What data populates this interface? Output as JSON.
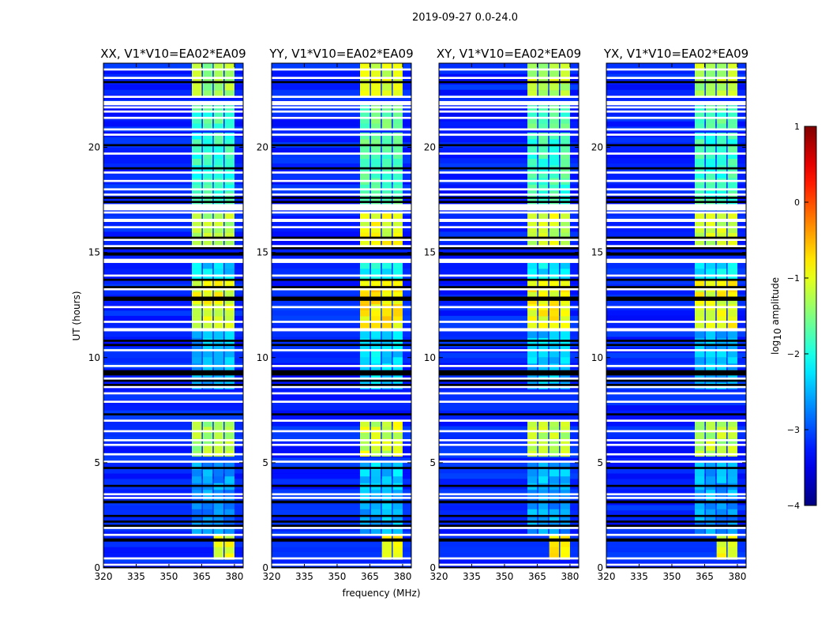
{
  "chart_data": {
    "type": "heatmap",
    "title": "2019-09-27 0.0-24.0",
    "xlabel": "frequency (MHz)",
    "ylabel": "UT (hours)",
    "xlim": [
      320,
      384
    ],
    "ylim": [
      0,
      24
    ],
    "xticks": [
      320,
      335,
      350,
      365,
      380
    ],
    "yticks": [
      0,
      5,
      10,
      15,
      20
    ],
    "colorbar": {
      "label_main": "log",
      "label_sub": "10",
      "label_rest": " amplitude",
      "clim": [
        -4,
        1
      ],
      "ticks": [
        1,
        0,
        -1,
        -2,
        -3,
        -4
      ],
      "tick_labels": [
        "1",
        "0",
        "−1",
        "−2",
        "−3",
        "−4"
      ],
      "colormap": "jet"
    },
    "background_level": -3.2,
    "channel_blocks_mhz": [
      [
        360.5,
        365
      ],
      [
        365.5,
        370
      ],
      [
        370.5,
        375
      ],
      [
        375.5,
        380
      ]
    ],
    "signal_segments_hours": [
      {
        "t": [
          22.4,
          24.0
        ],
        "level": -1.3,
        "blocks": [
          0,
          1,
          2,
          3
        ]
      },
      {
        "t": [
          20.85,
          22.0
        ],
        "level": -1.8,
        "blocks": [
          0,
          1,
          2,
          3
        ]
      },
      {
        "t": [
          17.0,
          20.7
        ],
        "level": -1.9,
        "blocks": [
          0,
          1,
          2,
          3
        ]
      },
      {
        "t": [
          15.3,
          16.9
        ],
        "level": -1.2,
        "blocks": [
          0,
          1,
          2,
          3
        ]
      },
      {
        "t": [
          13.7,
          14.5
        ],
        "level": -2.3,
        "blocks": [
          0,
          1,
          2,
          3
        ]
      },
      {
        "t": [
          11.4,
          13.7
        ],
        "level": -1.0,
        "blocks": [
          0,
          1,
          2,
          3
        ]
      },
      {
        "t": [
          8.5,
          11.25
        ],
        "level": -2.5,
        "blocks": [
          0,
          1,
          2,
          3
        ]
      },
      {
        "t": [
          5.3,
          7.0
        ],
        "level": -1.3,
        "blocks": [
          0,
          1,
          2,
          3
        ]
      },
      {
        "t": [
          3.4,
          5.0
        ],
        "level": -2.6,
        "blocks": [
          0,
          1,
          2,
          3
        ]
      },
      {
        "t": [
          1.6,
          3.4
        ],
        "level": -2.7,
        "blocks": [
          0,
          1,
          2,
          3
        ]
      },
      {
        "t": [
          0.4,
          1.6
        ],
        "level": -1.0,
        "blocks": [
          2,
          3
        ]
      }
    ],
    "flagged_hours": [
      23.7,
      23.3,
      22.4,
      [
        22.0,
        22.2
      ],
      21.9,
      21.7,
      21.4,
      20.85,
      20.6,
      19.7,
      18.8,
      18.4,
      18.0,
      17.75,
      [
        17.0,
        17.3
      ],
      16.9,
      [
        16.45,
        16.6
      ],
      16.2,
      15.6,
      15.3,
      [
        14.5,
        14.7
      ],
      13.9,
      13.25,
      12.4,
      11.7,
      [
        11.25,
        11.4
      ],
      10.35,
      9.6,
      9.0,
      8.6,
      8.3,
      7.9,
      7.0,
      6.5,
      6.07,
      5.85,
      5.4,
      [
        5.0,
        5.1
      ],
      3.5,
      3.33,
      1.9,
      1.57,
      0.45,
      0.15
    ],
    "zero_hours": [
      23.1,
      20.1,
      19.0,
      17.6,
      17.4,
      15.7,
      15.2,
      [
        14.85,
        15.0
      ],
      13.7,
      13.35,
      [
        12.7,
        12.9
      ],
      10.8,
      10.6,
      [
        9.15,
        9.4
      ],
      8.9,
      8.7,
      7.3,
      4.75,
      3.9,
      [
        3.07,
        3.2
      ],
      2.47,
      2.2,
      2.0,
      [
        1.25,
        1.4
      ],
      [
        0.0,
        0.05
      ]
    ],
    "panels": [
      {
        "title": "XX, V1*V10=EA02*EA09",
        "level_offset": 0.0
      },
      {
        "title": "YY, V1*V10=EA02*EA09",
        "level_offset": 0.2
      },
      {
        "title": "XY, V1*V10=EA02*EA09",
        "level_offset": 0.1
      },
      {
        "title": "YX, V1*V10=EA02*EA09",
        "level_offset": 0.05
      }
    ]
  }
}
